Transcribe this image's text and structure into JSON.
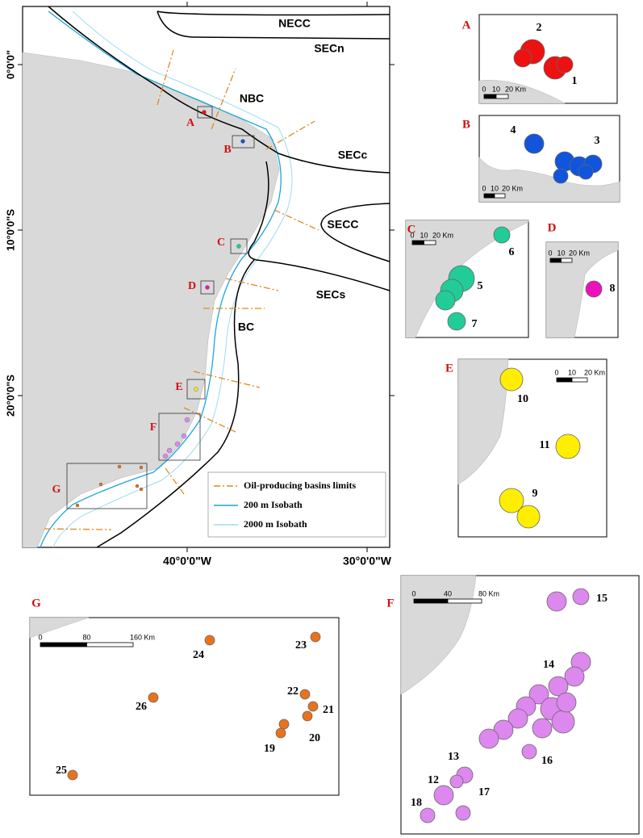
{
  "main_map": {
    "lat_labels": [
      "0°0'0\"",
      "10°0'0\"S",
      "20°0'0\"S"
    ],
    "lon_labels": [
      "40°0'0\"W",
      "30°0'0\"W"
    ],
    "currents": [
      "NECC",
      "SECn",
      "NBC",
      "SECc",
      "SECC",
      "SECs",
      "BC"
    ],
    "box_labels": [
      "A",
      "B",
      "C",
      "D",
      "E",
      "F",
      "G"
    ],
    "legend": [
      "Oil-producing basins limits",
      "200 m Isobath",
      "2000 m Isobath"
    ]
  },
  "insets": [
    {
      "letter": "A",
      "scale": [
        "0",
        "10",
        "20 Km"
      ],
      "sites": [
        "2",
        "1"
      ]
    },
    {
      "letter": "B",
      "scale": [
        "0",
        "10",
        "20 Km"
      ],
      "sites": [
        "4",
        "3"
      ]
    },
    {
      "letter": "C",
      "scale": [
        "0",
        "10",
        "20 Km"
      ],
      "sites": [
        "6",
        "5",
        "7"
      ]
    },
    {
      "letter": "D",
      "scale": [
        "0",
        "10",
        "20 Km"
      ],
      "sites": [
        "8"
      ]
    },
    {
      "letter": "E",
      "scale": [
        "0",
        "10",
        "20 Km"
      ],
      "sites": [
        "10",
        "11",
        "9"
      ]
    },
    {
      "letter": "G",
      "scale": [
        "0",
        "80",
        "160 Km"
      ],
      "sites": [
        "24",
        "23",
        "22",
        "21",
        "26",
        "19",
        "20",
        "25"
      ]
    },
    {
      "letter": "F",
      "scale": [
        "0",
        "40",
        "80 Km"
      ],
      "sites": [
        "15",
        "14",
        "16",
        "13",
        "12",
        "18",
        "17"
      ]
    }
  ]
}
